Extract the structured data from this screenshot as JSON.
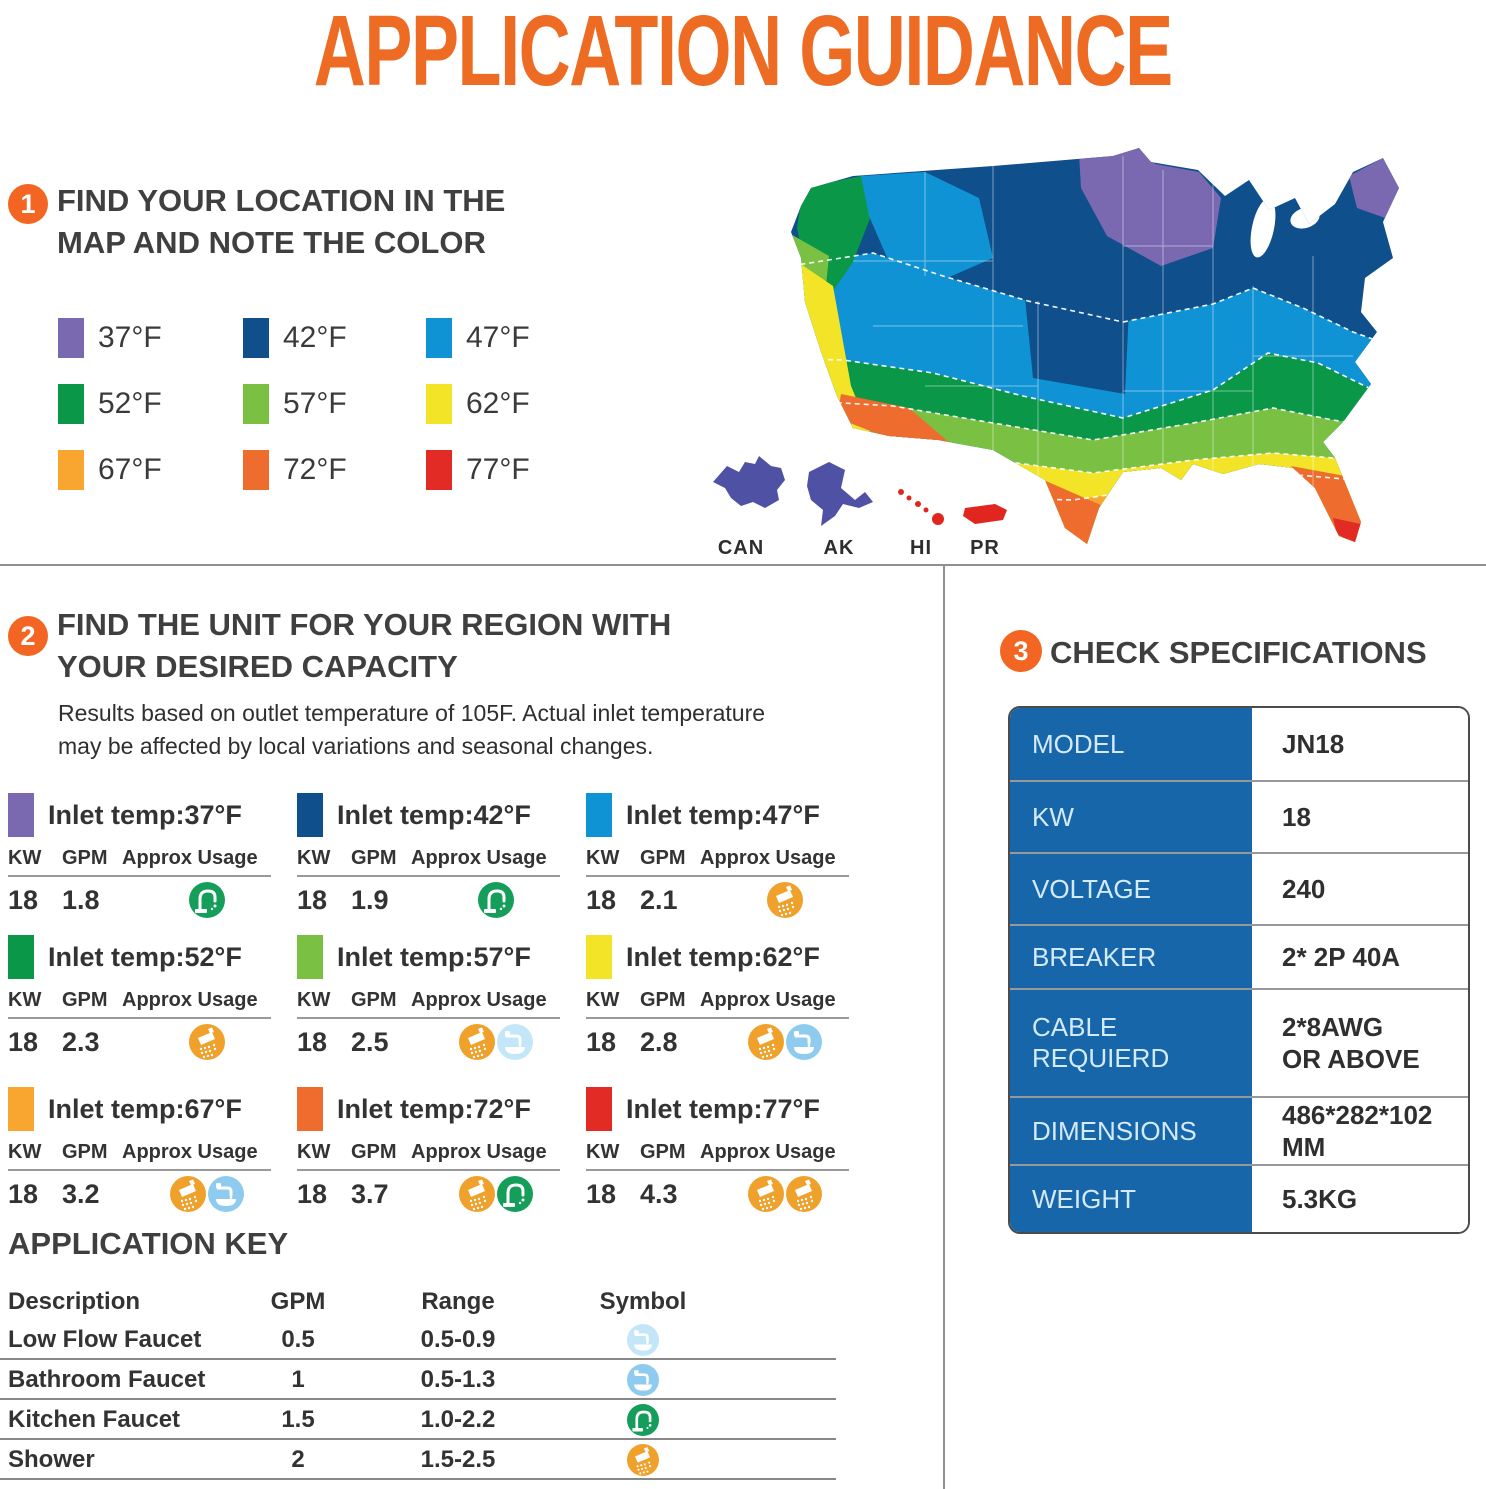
{
  "title": "APPLICATION GUIDANCE",
  "colors": {
    "accent_orange": "#f26522",
    "title_orange": "#ed6b23",
    "table_blue": "#1766aa",
    "divider_gray": "#909090"
  },
  "steps": {
    "step1": {
      "number": "1",
      "heading_line1": "FIND YOUR LOCATION IN THE",
      "heading_line2": "MAP AND NOTE THE COLOR"
    },
    "step2": {
      "number": "2",
      "heading_line1": "FIND THE UNIT FOR YOUR REGION WITH",
      "heading_line2": "YOUR DESIRED CAPACITY",
      "note_line1": "Results based on outlet temperature of 105F. Actual inlet temperature",
      "note_line2": "may be affected by local variations and seasonal changes."
    },
    "step3": {
      "number": "3",
      "heading": "CHECK SPECIFICATIONS"
    }
  },
  "legend": [
    {
      "label": "37°F",
      "color": "#7a69b0"
    },
    {
      "label": "42°F",
      "color": "#0f4f8b"
    },
    {
      "label": "47°F",
      "color": "#0f93d4"
    },
    {
      "label": "52°F",
      "color": "#0a9748"
    },
    {
      "label": "57°F",
      "color": "#7ac143"
    },
    {
      "label": "62°F",
      "color": "#f4e428"
    },
    {
      "label": "67°F",
      "color": "#f9a631"
    },
    {
      "label": "72°F",
      "color": "#ee6c2e"
    },
    {
      "label": "77°F",
      "color": "#e32b25"
    }
  ],
  "map": {
    "insets": [
      {
        "label": "CAN"
      },
      {
        "label": "AK"
      },
      {
        "label": "HI"
      },
      {
        "label": "PR"
      }
    ]
  },
  "card_headers": [
    "KW",
    "GPM",
    "Approx Usage"
  ],
  "cards": [
    {
      "label": "Inlet temp:37°F",
      "color": "#7a69b0",
      "kw": "18",
      "gpm": "1.8",
      "icons": [
        "kitchen-faucet"
      ]
    },
    {
      "label": "Inlet temp:42°F",
      "color": "#0f4f8b",
      "kw": "18",
      "gpm": "1.9",
      "icons": [
        "kitchen-faucet"
      ]
    },
    {
      "label": "Inlet temp:47°F",
      "color": "#0f93d4",
      "kw": "18",
      "gpm": "2.1",
      "icons": [
        "shower"
      ]
    },
    {
      "label": "Inlet temp:52°F",
      "color": "#0a9748",
      "kw": "18",
      "gpm": "2.3",
      "icons": [
        "shower"
      ]
    },
    {
      "label": "Inlet temp:57°F",
      "color": "#7ac143",
      "kw": "18",
      "gpm": "2.5",
      "icons": [
        "shower",
        "low-flow-faucet"
      ]
    },
    {
      "label": "Inlet temp:62°F",
      "color": "#f4e428",
      "kw": "18",
      "gpm": "2.8",
      "icons": [
        "shower",
        "bathroom-faucet"
      ]
    },
    {
      "label": "Inlet temp:67°F",
      "color": "#f9a631",
      "kw": "18",
      "gpm": "3.2",
      "icons": [
        "shower",
        "bathroom-faucet"
      ]
    },
    {
      "label": "Inlet temp:72°F",
      "color": "#ee6c2e",
      "kw": "18",
      "gpm": "3.7",
      "icons": [
        "shower",
        "kitchen-faucet"
      ]
    },
    {
      "label": "Inlet temp:77°F",
      "color": "#e32b25",
      "kw": "18",
      "gpm": "4.3",
      "icons": [
        "shower",
        "shower"
      ]
    }
  ],
  "application_key": {
    "title": "APPLICATION KEY",
    "headers": [
      "Description",
      "GPM",
      "Range",
      "Symbol"
    ],
    "rows": [
      {
        "description": "Low Flow Faucet",
        "gpm": "0.5",
        "range": "0.5-0.9",
        "symbol": "low-flow-faucet"
      },
      {
        "description": "Bathroom Faucet",
        "gpm": "1",
        "range": "0.5-1.3",
        "symbol": "bathroom-faucet"
      },
      {
        "description": "Kitchen Faucet",
        "gpm": "1.5",
        "range": "1.0-2.2",
        "symbol": "kitchen-faucet"
      },
      {
        "description": "Shower",
        "gpm": "2",
        "range": "1.5-2.5",
        "symbol": "shower"
      }
    ]
  },
  "specifications": {
    "rows": [
      {
        "label": "MODEL",
        "value": "JN18"
      },
      {
        "label": "KW",
        "value": "18"
      },
      {
        "label": "VOLTAGE",
        "value": "240"
      },
      {
        "label": "BREAKER",
        "value": "2* 2P 40A"
      },
      {
        "label": "CABLE REQUIERD",
        "value": "2*8AWG\nOR ABOVE"
      },
      {
        "label": "DIMENSIONS",
        "value": "486*282*102 MM"
      },
      {
        "label": "WEIGHT",
        "value": "5.3KG"
      }
    ]
  }
}
